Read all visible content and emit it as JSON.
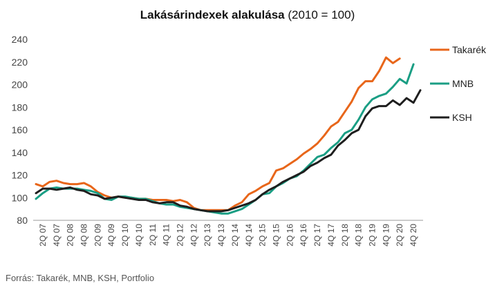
{
  "chart_data": {
    "type": "line",
    "title": "Lakásárindexek alakulása",
    "subtitle": "(2010 = 100)",
    "source": "Forrás: Takarék, MNB, KSH, Portfolio",
    "ylim": [
      80,
      240
    ],
    "yticks": [
      80,
      100,
      120,
      140,
      160,
      180,
      200,
      220,
      240
    ],
    "grid": false,
    "legend_position": "right",
    "x": [
      "1Q 07",
      "2Q 07",
      "3Q 07",
      "4Q 07",
      "1Q 08",
      "2Q 08",
      "3Q 08",
      "4Q 08",
      "1Q 09",
      "2Q 09",
      "3Q 09",
      "4Q 09",
      "1Q 10",
      "2Q 10",
      "3Q 10",
      "4Q 10",
      "1Q 11",
      "2Q 11",
      "3Q 11",
      "4Q 11",
      "1Q 12",
      "2Q 12",
      "3Q 12",
      "4Q 12",
      "1Q 13",
      "2Q 13",
      "3Q 13",
      "4Q 13",
      "1Q 14",
      "2Q 14",
      "3Q 14",
      "4Q 14",
      "1Q 15",
      "2Q 15",
      "3Q 15",
      "4Q 15",
      "1Q 16",
      "2Q 16",
      "3Q 16",
      "4Q 16",
      "1Q 17",
      "2Q 17",
      "3Q 17",
      "4Q 17",
      "1Q 18",
      "2Q 18",
      "3Q 18",
      "4Q 18",
      "1Q 19",
      "2Q 19",
      "3Q 19",
      "4Q 19",
      "1Q 20",
      "2Q 20",
      "3Q 20",
      "4Q 20",
      "1Q 21"
    ],
    "xtick_labels": [
      "2Q 07",
      "4Q 07",
      "2Q 08",
      "4Q 08",
      "2Q 09",
      "4Q 09",
      "2Q 10",
      "4Q 10",
      "2Q 11",
      "4Q 11",
      "2Q 12",
      "4Q 12",
      "2Q 13",
      "4Q 13",
      "2Q 14",
      "4Q 14",
      "2Q 15",
      "4Q 15",
      "2Q 16",
      "4Q 16",
      "2Q 17",
      "4Q 17",
      "2Q 18",
      "4Q 18",
      "2Q 19",
      "4Q 19",
      "2Q 20",
      "4Q 20"
    ],
    "series": [
      {
        "name": "Takarék",
        "color": "#e8661a",
        "values": [
          112,
          110,
          114,
          115,
          113,
          112,
          112,
          113,
          110,
          105,
          102,
          100,
          101,
          100,
          100,
          99,
          99,
          98,
          98,
          98,
          97,
          98,
          96,
          91,
          89,
          89,
          89,
          89,
          89,
          93,
          96,
          103,
          106,
          110,
          113,
          124,
          126,
          130,
          134,
          139,
          143,
          148,
          155,
          163,
          167,
          176,
          185,
          197,
          203,
          203,
          212,
          224,
          219,
          223,
          null,
          null,
          null
        ]
      },
      {
        "name": "MNB",
        "color": "#1a9e84",
        "values": [
          99,
          104,
          108,
          109,
          108,
          108,
          108,
          107,
          106,
          104,
          99,
          98,
          101,
          101,
          100,
          99,
          99,
          97,
          95,
          94,
          94,
          92,
          91,
          90,
          89,
          88,
          87,
          86,
          86,
          88,
          90,
          94,
          98,
          103,
          104,
          110,
          113,
          117,
          119,
          124,
          130,
          136,
          138,
          144,
          149,
          157,
          160,
          169,
          180,
          187,
          190,
          192,
          198,
          205,
          201,
          218,
          null
        ]
      },
      {
        "name": "KSH",
        "color": "#1e1e1e",
        "values": [
          104,
          108,
          108,
          107,
          108,
          109,
          107,
          106,
          103,
          102,
          99,
          100,
          101,
          100,
          99,
          98,
          98,
          96,
          95,
          96,
          96,
          93,
          92,
          90,
          89,
          88,
          88,
          88,
          89,
          91,
          93,
          95,
          98,
          103,
          107,
          110,
          114,
          117,
          120,
          123,
          128,
          131,
          135,
          138,
          146,
          151,
          157,
          160,
          172,
          179,
          181,
          181,
          186,
          182,
          188,
          184,
          195
        ]
      }
    ]
  }
}
